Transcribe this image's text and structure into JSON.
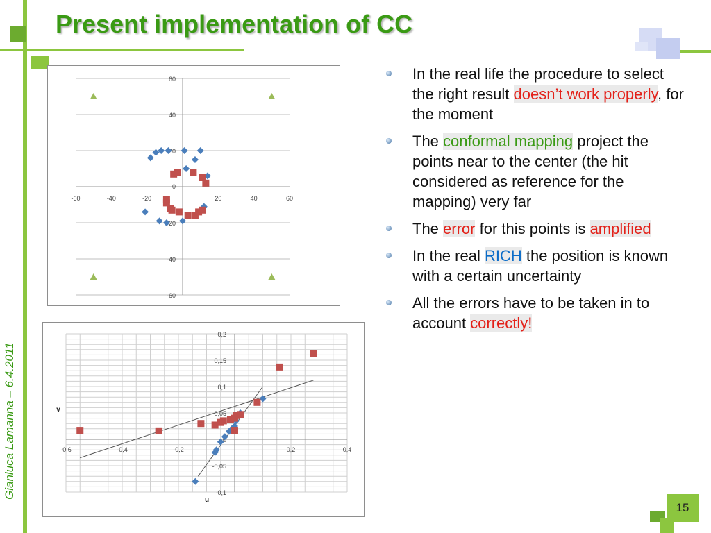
{
  "slide": {
    "title": "Present implementation of CC",
    "author": "Gianluca Lamanna – 6.4.2011",
    "page_number": "15",
    "accent_color": "#8cc63f",
    "title_color": "#3a9a14"
  },
  "bullets": [
    {
      "parts": [
        {
          "text": "In the real life the procedure to select the right result ",
          "style": ""
        },
        {
          "text": "doesn’t  work properly",
          "style": "red"
        },
        {
          "text": ", for the moment",
          "style": ""
        }
      ]
    },
    {
      "parts": [
        {
          "text": "The ",
          "style": ""
        },
        {
          "text": "conformal mapping",
          "style": "green"
        },
        {
          "text": " project the points near to the center (the hit considered as reference for the mapping) very far",
          "style": ""
        }
      ]
    },
    {
      "parts": [
        {
          "text": "The ",
          "style": ""
        },
        {
          "text": "error",
          "style": "red"
        },
        {
          "text": " for this points is ",
          "style": ""
        },
        {
          "text": "amplified",
          "style": "red"
        }
      ]
    },
    {
      "parts": [
        {
          "text": "In the real ",
          "style": ""
        },
        {
          "text": "RICH",
          "style": "blue"
        },
        {
          "text": " the position is known with a certain uncertainty",
          "style": ""
        }
      ]
    },
    {
      "parts": [
        {
          "text": "All the errors have to be taken in to account ",
          "style": ""
        },
        {
          "text": "correctly!",
          "style": "red"
        }
      ]
    }
  ],
  "chart_data": [
    {
      "type": "scatter",
      "title": "",
      "xlabel": "",
      "ylabel": "",
      "xlim": [
        -60,
        60
      ],
      "ylim": [
        -60,
        60
      ],
      "xticks": [
        "-60",
        "-40",
        "-20",
        "0",
        "20",
        "40",
        "60"
      ],
      "yticks": [
        "60",
        "40",
        "20",
        "0",
        "-20",
        "-40",
        "-60"
      ],
      "grid": true,
      "series": [
        {
          "marker": "diamond",
          "color": "#4a7ebb",
          "points": [
            [
              -18,
              16
            ],
            [
              -15,
              19
            ],
            [
              -12,
              20
            ],
            [
              -8,
              20
            ],
            [
              1,
              20
            ],
            [
              10,
              20
            ],
            [
              7,
              15
            ],
            [
              2,
              10
            ],
            [
              14,
              6
            ],
            [
              -21,
              -14
            ],
            [
              -13,
              -19
            ],
            [
              -9,
              -20
            ],
            [
              0,
              -19
            ],
            [
              12,
              -11
            ]
          ]
        },
        {
          "marker": "square",
          "color": "#c0504d",
          "points": [
            [
              -5,
              7
            ],
            [
              -3,
              8
            ],
            [
              6,
              8
            ],
            [
              11,
              5
            ],
            [
              13,
              2
            ],
            [
              -9,
              -7
            ],
            [
              -9,
              -9
            ],
            [
              -7,
              -12
            ],
            [
              -2,
              -14
            ],
            [
              3,
              -16
            ],
            [
              7,
              -16
            ],
            [
              9,
              -14
            ],
            [
              11,
              -13
            ],
            [
              -6,
              -13
            ]
          ]
        },
        {
          "marker": "triangle",
          "color": "#9bbb59",
          "points": [
            [
              -50,
              50
            ],
            [
              50,
              50
            ],
            [
              -50,
              -50
            ],
            [
              50,
              -50
            ]
          ]
        }
      ]
    },
    {
      "type": "scatter",
      "title": "",
      "xlabel": "u",
      "ylabel": "v",
      "xlim": [
        -0.6,
        0.4
      ],
      "ylim": [
        -0.1,
        0.2
      ],
      "xticks": [
        "-0,6",
        "-0,4",
        "-0,2",
        "0",
        "0,2",
        "0,4"
      ],
      "yticks": [
        "0,2",
        "0,15",
        "0,1",
        "0,05",
        "0",
        "-0,05",
        "-0,1"
      ],
      "grid": true,
      "series": [
        {
          "marker": "diamond",
          "color": "#4a7ebb",
          "points": [
            [
              -0.14,
              -0.08
            ],
            [
              -0.07,
              -0.025
            ],
            [
              -0.065,
              -0.02
            ],
            [
              -0.05,
              -0.005
            ],
            [
              -0.035,
              0.005
            ],
            [
              -0.02,
              0.015
            ],
            [
              -0.01,
              0.02
            ],
            [
              0.0,
              0.025
            ],
            [
              0.005,
              0.035
            ],
            [
              0.01,
              0.045
            ],
            [
              0.02,
              0.05
            ],
            [
              0.1,
              0.077
            ]
          ]
        },
        {
          "marker": "square",
          "color": "#c0504d",
          "points": [
            [
              -0.55,
              0.017
            ],
            [
              -0.27,
              0.016
            ],
            [
              -0.12,
              0.03
            ],
            [
              -0.07,
              0.027
            ],
            [
              -0.05,
              0.032
            ],
            [
              -0.04,
              0.035
            ],
            [
              -0.015,
              0.037
            ],
            [
              0.0,
              0.017
            ],
            [
              0.0,
              0.04
            ],
            [
              0.005,
              0.045
            ],
            [
              0.02,
              0.047
            ],
            [
              0.08,
              0.07
            ],
            [
              0.16,
              0.137
            ],
            [
              0.28,
              0.162
            ]
          ]
        }
      ],
      "fit_lines": [
        {
          "from": [
            -0.55,
            -0.035
          ],
          "to": [
            0.28,
            0.112
          ]
        },
        {
          "from": [
            -0.13,
            -0.07
          ],
          "to": [
            0.1,
            0.1
          ]
        }
      ]
    }
  ]
}
